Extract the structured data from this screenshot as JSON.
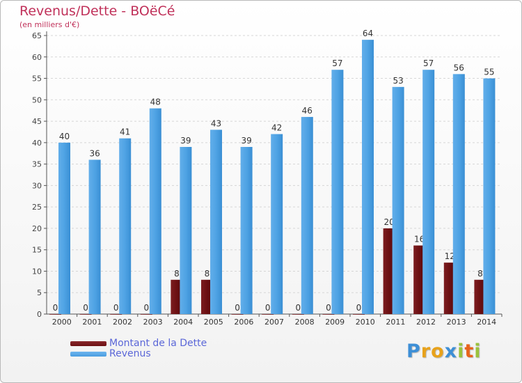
{
  "header": {
    "title": "Revenus/Dette - BOëCé",
    "subtitle": "(en milliers d'€)"
  },
  "legend": {
    "items": [
      {
        "label": "Montant de la Dette",
        "color": "#6b0f12"
      },
      {
        "label": "Revenus",
        "color": "#4a9de0"
      }
    ]
  },
  "logo": {
    "letters": [
      {
        "ch": "P",
        "color": "#3d8fd6"
      },
      {
        "ch": "r",
        "color": "#e8a21b"
      },
      {
        "ch": "o",
        "color": "#e8a21b"
      },
      {
        "ch": "x",
        "color": "#3d8fd6"
      },
      {
        "ch": "i",
        "color": "#9ac23c"
      },
      {
        "ch": "t",
        "color": "#e8631b"
      },
      {
        "ch": "i",
        "color": "#9ac23c"
      }
    ]
  },
  "chart_data": {
    "type": "bar",
    "title": "Revenus/Dette - BOëCé",
    "subtitle": "(en milliers d'€)",
    "xlabel": "",
    "ylabel": "",
    "ylim": [
      0,
      65
    ],
    "yticks": [
      0,
      5,
      10,
      15,
      20,
      25,
      30,
      35,
      40,
      45,
      50,
      55,
      60,
      65
    ],
    "grid": true,
    "legend_position": "bottom-left",
    "categories": [
      "2000",
      "2001",
      "2002",
      "2003",
      "2004",
      "2005",
      "2006",
      "2007",
      "2008",
      "2009",
      "2010",
      "2011",
      "2012",
      "2013",
      "2014"
    ],
    "series": [
      {
        "name": "Montant de la Dette",
        "color": "#6b0f12",
        "values": [
          0,
          0,
          0,
          0,
          8,
          8,
          0,
          0,
          0,
          0,
          0,
          20,
          16,
          12,
          8
        ]
      },
      {
        "name": "Revenus",
        "color": "#4a9de0",
        "values": [
          40,
          36,
          41,
          48,
          39,
          43,
          39,
          42,
          46,
          57,
          64,
          53,
          57,
          56,
          55
        ]
      }
    ]
  }
}
